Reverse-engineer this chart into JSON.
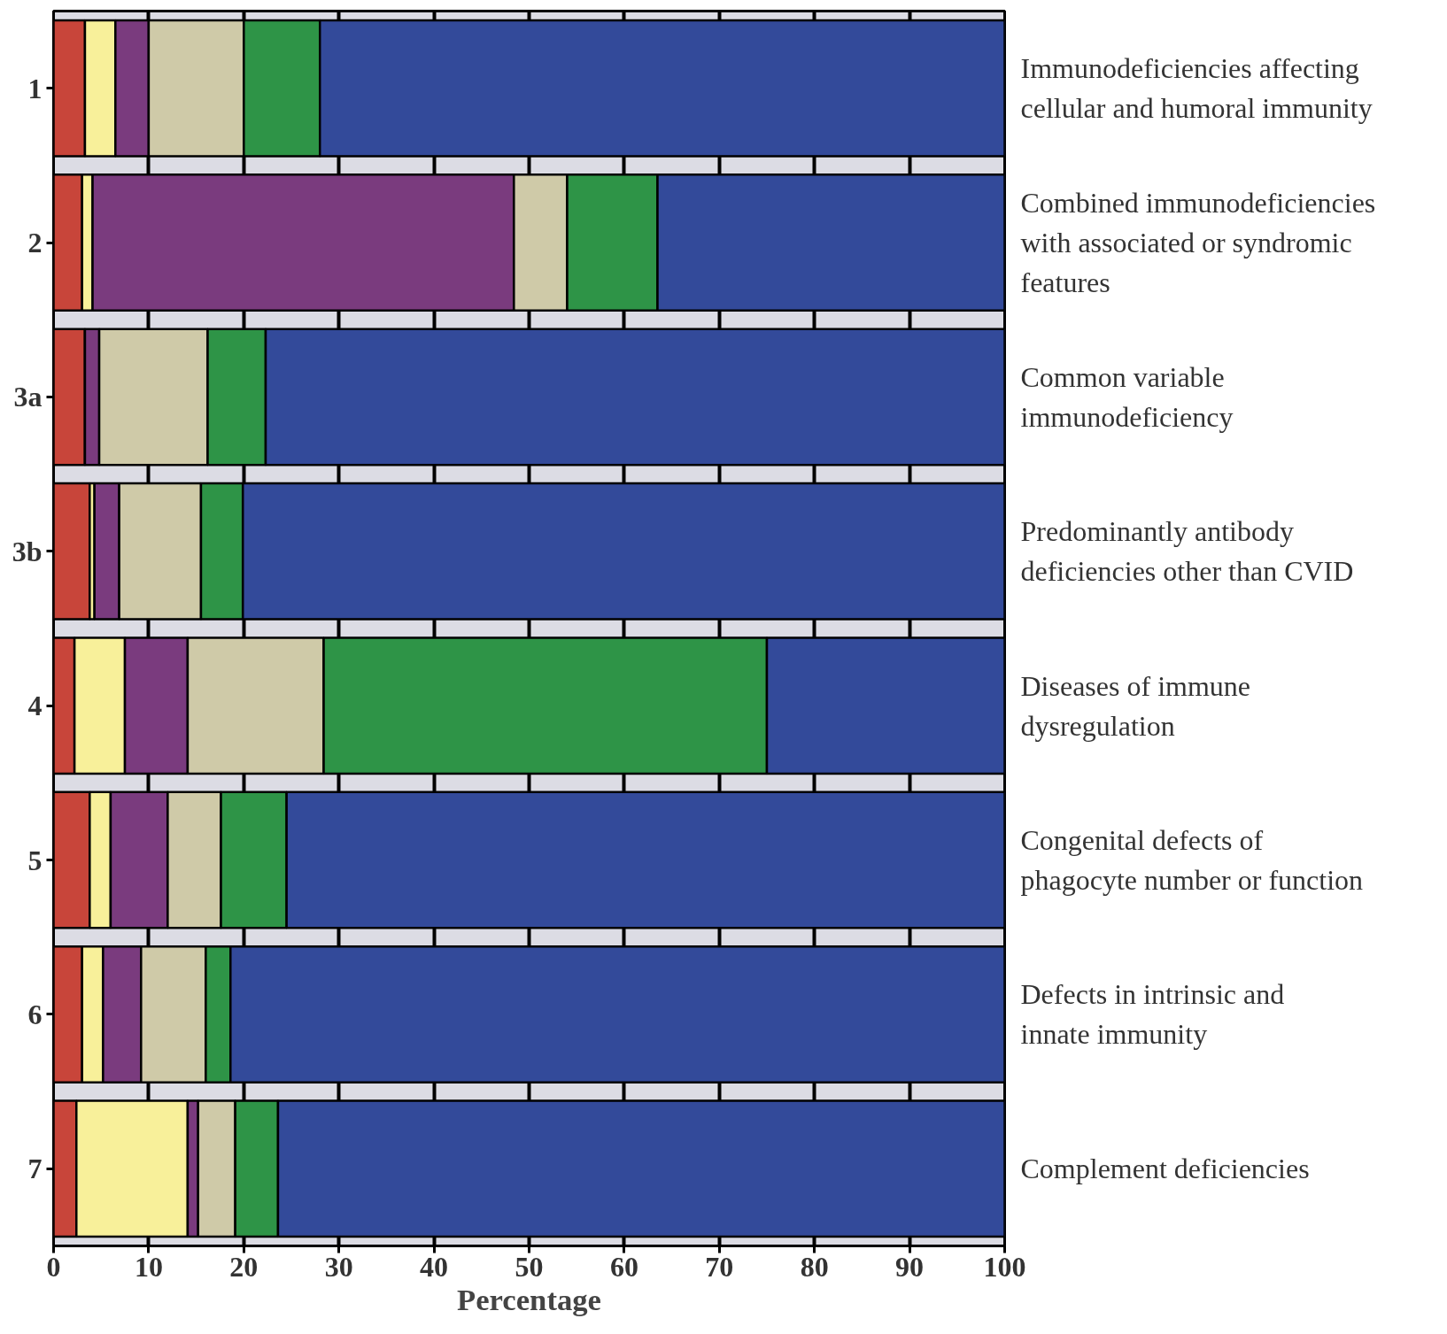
{
  "chart_data": {
    "type": "bar",
    "orientation": "horizontal",
    "stacked": true,
    "xlabel": "Percentage",
    "categories": [
      "1",
      "2",
      "3a",
      "3b",
      "4",
      "5",
      "6",
      "7"
    ],
    "series": [
      {
        "color": "#c8453a",
        "values": [
          3.3,
          3,
          3.3,
          3.8,
          2.2,
          3.8,
          3,
          2.4
        ]
      },
      {
        "color": "#f8f09a",
        "values": [
          3.2,
          1.1,
          0,
          0.5,
          5.3,
          2.2,
          2.2,
          11.7
        ]
      },
      {
        "color": "#7a3b7e",
        "values": [
          3.5,
          44.3,
          1.5,
          2.6,
          6.6,
          6,
          4,
          1.1
        ]
      },
      {
        "color": "#cfcaa8",
        "values": [
          10,
          5.6,
          11.4,
          8.6,
          14.3,
          5.6,
          6.8,
          3.9
        ]
      },
      {
        "color": "#2e9447",
        "values": [
          8,
          9.5,
          6.1,
          4.4,
          46.6,
          6.9,
          2.6,
          4.5
        ]
      },
      {
        "color": "#334a9a",
        "values": [
          72,
          36.5,
          77.7,
          80.1,
          25,
          75.5,
          81.4,
          76.4
        ]
      }
    ],
    "xlim": [
      0,
      100
    ],
    "xticks": [
      0,
      10,
      20,
      30,
      40,
      50,
      60,
      70,
      80,
      90,
      100
    ],
    "grid": "x",
    "annotations": [
      "Immunodeficiencies affecting cellular and humoral immunity",
      "Combined immunodeficiencies with associated or syndromic features",
      "Common variable immunodeficiency",
      "Predominantly antibody deficiencies other than CVID",
      "Diseases of immune dysregulation",
      "Congenital defects of phagocyte number or function",
      "Defects in intrinsic and innate immunity",
      "Complement deficiencies"
    ]
  }
}
